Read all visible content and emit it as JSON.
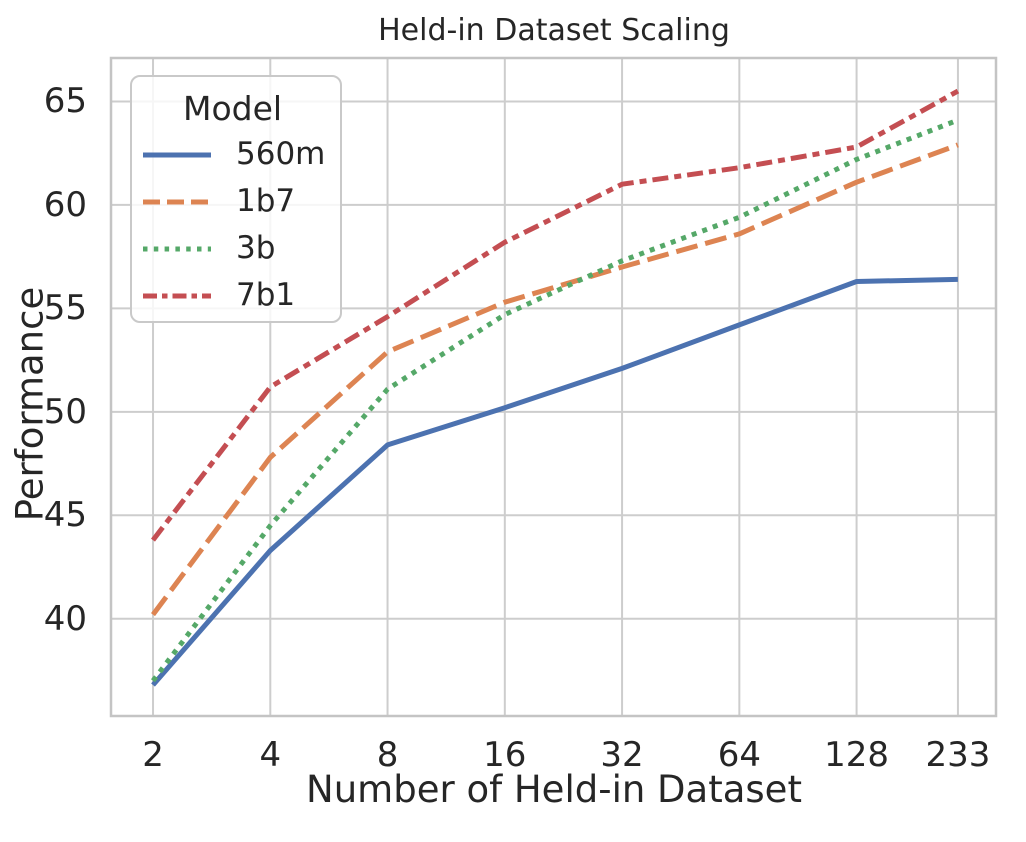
{
  "chart_data": {
    "type": "line",
    "title": "Held-in Dataset Scaling",
    "xlabel": "Number of Held-in Dataset",
    "ylabel": "Performance",
    "x_scale": "log2",
    "grid": true,
    "legend": {
      "title": "Model",
      "position": "upper-left"
    },
    "x": [
      2,
      4,
      8,
      16,
      32,
      64,
      128,
      233
    ],
    "xtick_labels": [
      "2",
      "4",
      "8",
      "16",
      "32",
      "64",
      "128",
      "233"
    ],
    "yticks": [
      40,
      45,
      50,
      55,
      60,
      65
    ],
    "ytick_labels": [
      "40",
      "45",
      "50",
      "55",
      "60",
      "65"
    ],
    "xlim": [
      1.56,
      291.8
    ],
    "ylim": [
      35.3,
      67.1
    ],
    "series": [
      {
        "name": "560m",
        "color": "#4C72B0",
        "style": "solid",
        "values": [
          36.8,
          43.3,
          48.4,
          50.2,
          52.1,
          54.2,
          56.3,
          56.4
        ]
      },
      {
        "name": "1b7",
        "color": "#DD8452",
        "style": "dashed",
        "values": [
          40.2,
          47.8,
          52.9,
          55.3,
          57.0,
          58.6,
          61.1,
          62.9
        ]
      },
      {
        "name": "3b",
        "color": "#55A868",
        "style": "dotted",
        "values": [
          37.0,
          44.5,
          51.1,
          54.7,
          57.3,
          59.4,
          62.2,
          64.1
        ]
      },
      {
        "name": "7b1",
        "color": "#C44E52",
        "style": "dashdot",
        "values": [
          43.8,
          51.2,
          54.6,
          58.2,
          61.0,
          61.8,
          62.8,
          65.5
        ]
      }
    ],
    "colors": {
      "background": "#ffffff",
      "grid": "#cdcdcd",
      "spine": "#c4c4c4",
      "text": "#262626"
    }
  }
}
